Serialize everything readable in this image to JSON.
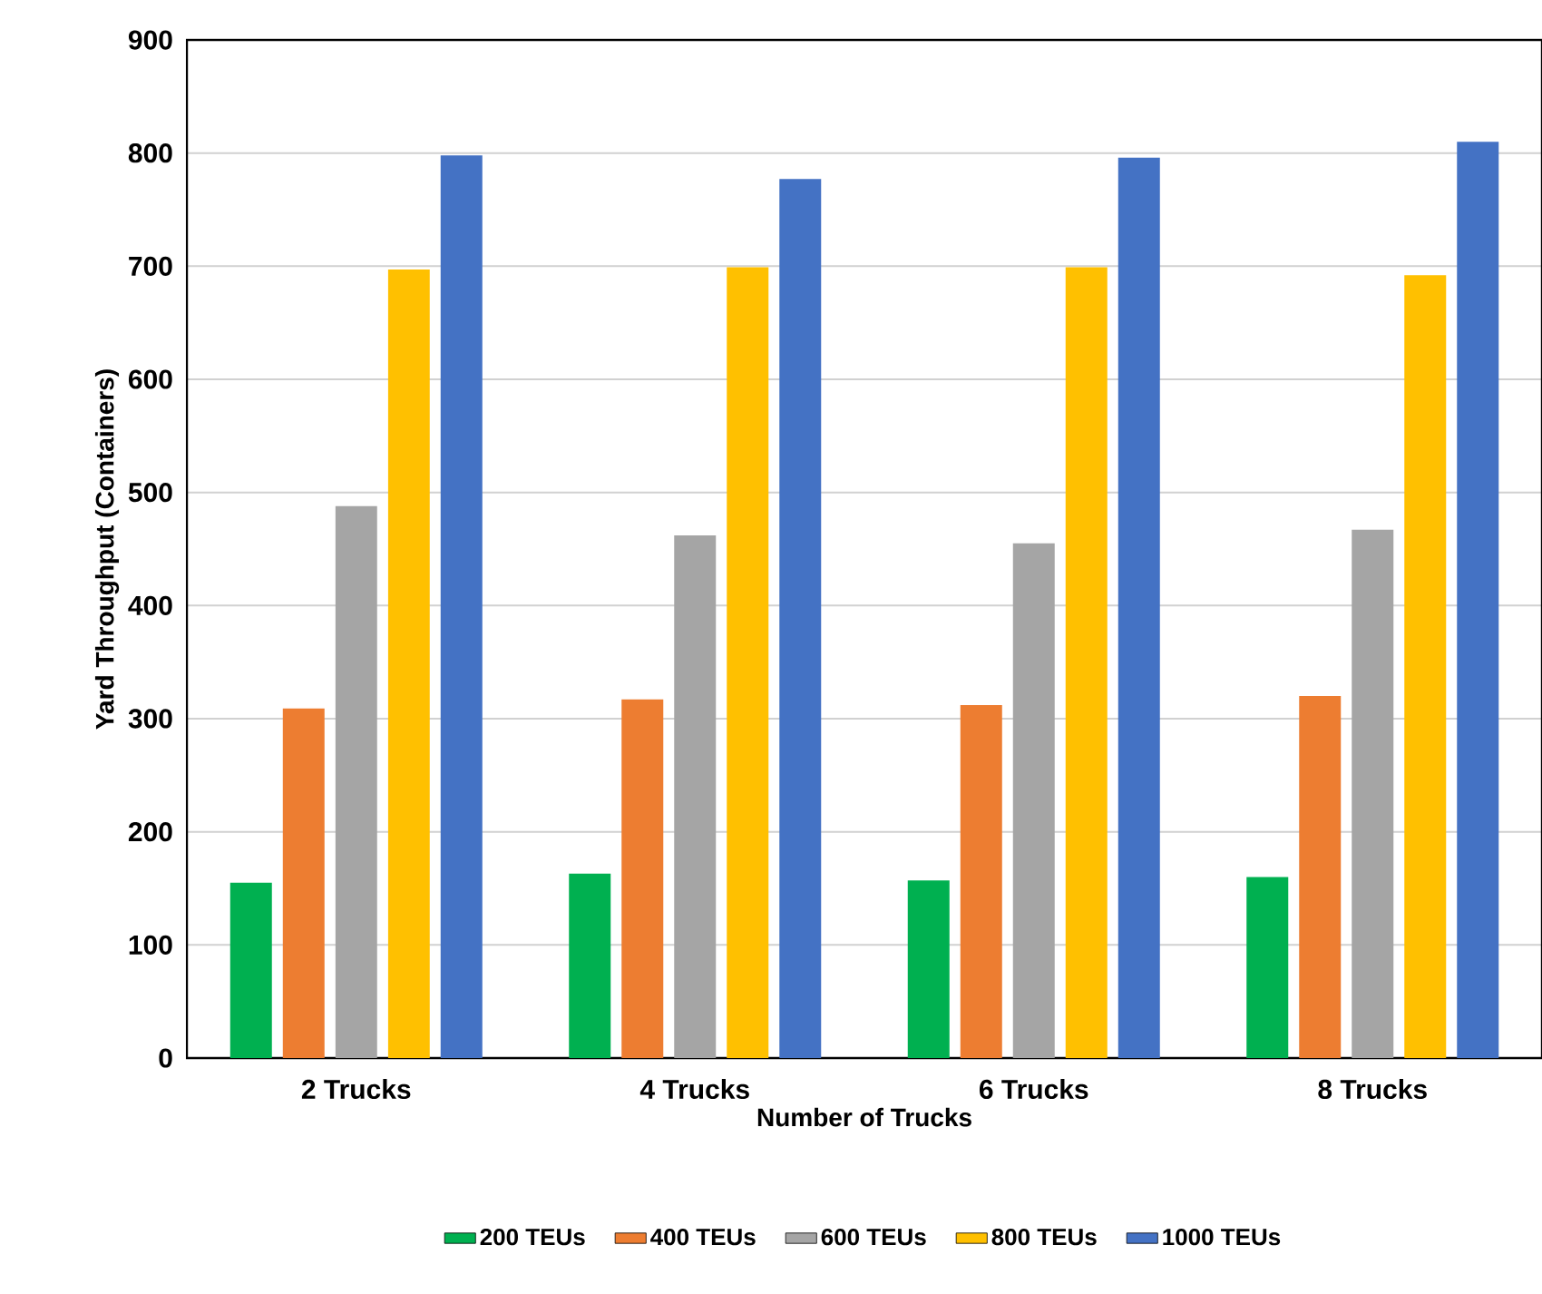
{
  "chart_data": {
    "type": "bar",
    "xlabel": "Number of Trucks",
    "ylabel": "Yard Throughput (Containers)",
    "categories": [
      "2 Trucks",
      "4 Trucks",
      "6 Trucks",
      "8 Trucks"
    ],
    "series": [
      {
        "name": "200 TEUs",
        "color": "#00b050",
        "values": [
          155,
          163,
          157,
          160
        ]
      },
      {
        "name": "400 TEUs",
        "color": "#ed7d31",
        "values": [
          309,
          317,
          312,
          320
        ]
      },
      {
        "name": "600 TEUs",
        "color": "#a5a5a5",
        "values": [
          488,
          462,
          455,
          467
        ]
      },
      {
        "name": "800 TEUs",
        "color": "#ffc000",
        "values": [
          697,
          699,
          699,
          692
        ]
      },
      {
        "name": "1000 TEUs",
        "color": "#4472c4",
        "values": [
          798,
          777,
          796,
          810
        ]
      }
    ],
    "ylim": [
      0,
      900
    ],
    "yticks": [
      0,
      100,
      200,
      300,
      400,
      500,
      600,
      700,
      800,
      900
    ],
    "grid": "y",
    "legend": "bottom"
  }
}
